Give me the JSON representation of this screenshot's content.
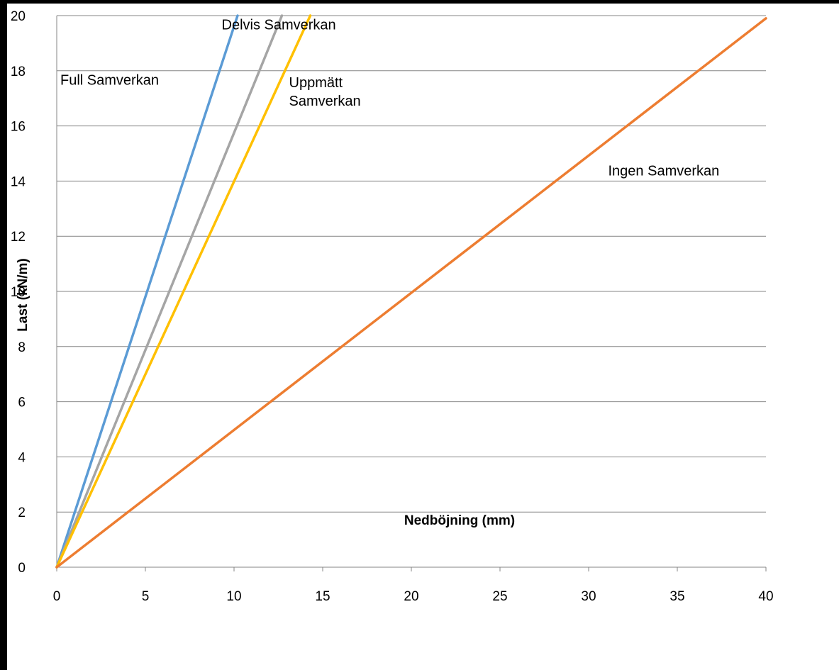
{
  "chart_data": {
    "type": "line",
    "title": "",
    "xlabel": "Nedböjning (mm)",
    "ylabel": "Last (kN/m)",
    "xlim": [
      0,
      40
    ],
    "ylim": [
      0,
      20
    ],
    "xticks": [
      0,
      5,
      10,
      15,
      20,
      25,
      30,
      35,
      40
    ],
    "yticks": [
      0,
      2,
      4,
      6,
      8,
      10,
      12,
      14,
      16,
      18,
      20
    ],
    "grid": "horizontal",
    "legend": "none",
    "series": [
      {
        "color": "#5B9BD5",
        "x": [
          0,
          10.2
        ],
        "y": [
          0,
          20
        ]
      },
      {
        "color": "#A5A5A5",
        "x": [
          0,
          12.7
        ],
        "y": [
          0,
          20
        ]
      },
      {
        "color": "#FFC000",
        "x": [
          0,
          14.3
        ],
        "y": [
          0,
          20
        ]
      },
      {
        "color": "#ED7D31",
        "x": [
          0,
          40
        ],
        "y": [
          0,
          19.9
        ]
      }
    ],
    "annotations": [
      {
        "text": "Full Samverkan",
        "lines": [
          "Full Samverkan"
        ],
        "x": 0.2,
        "y": 17.5
      },
      {
        "text": "Delvis Samverkan",
        "lines": [
          "Delvis Samverkan"
        ],
        "x": 9.3,
        "y": 19.5
      },
      {
        "text": "Uppmätt Samverkan",
        "lines": [
          "Uppmätt",
          "Samverkan"
        ],
        "x": 13.1,
        "y": 17.4
      },
      {
        "text": "Ingen Samverkan",
        "lines": [
          "Ingen Samverkan"
        ],
        "x": 31.1,
        "y": 14.2
      }
    ]
  }
}
